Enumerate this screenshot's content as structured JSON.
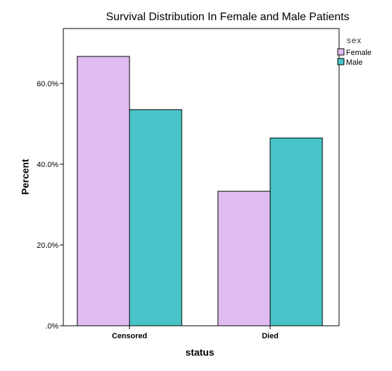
{
  "chart_data": {
    "type": "bar",
    "title": "Survival Distribution In Female and Male Patients",
    "xlabel": "status",
    "ylabel": "Percent",
    "categories": [
      "Censored",
      "Died"
    ],
    "series": [
      {
        "name": "Female",
        "values": [
          66.7,
          33.3
        ],
        "color": "#dfbbf2"
      },
      {
        "name": "Male",
        "values": [
          53.5,
          46.5
        ],
        "color": "#48c4c8"
      }
    ],
    "ylim": [
      0,
      73.6
    ],
    "yticks": [
      0,
      20,
      40,
      60
    ],
    "ytick_labels": [
      ".0%",
      "20.0%",
      "40.0%",
      "60.0%"
    ],
    "legend": {
      "title": "sex",
      "placement": "right-top"
    },
    "grid": false
  }
}
